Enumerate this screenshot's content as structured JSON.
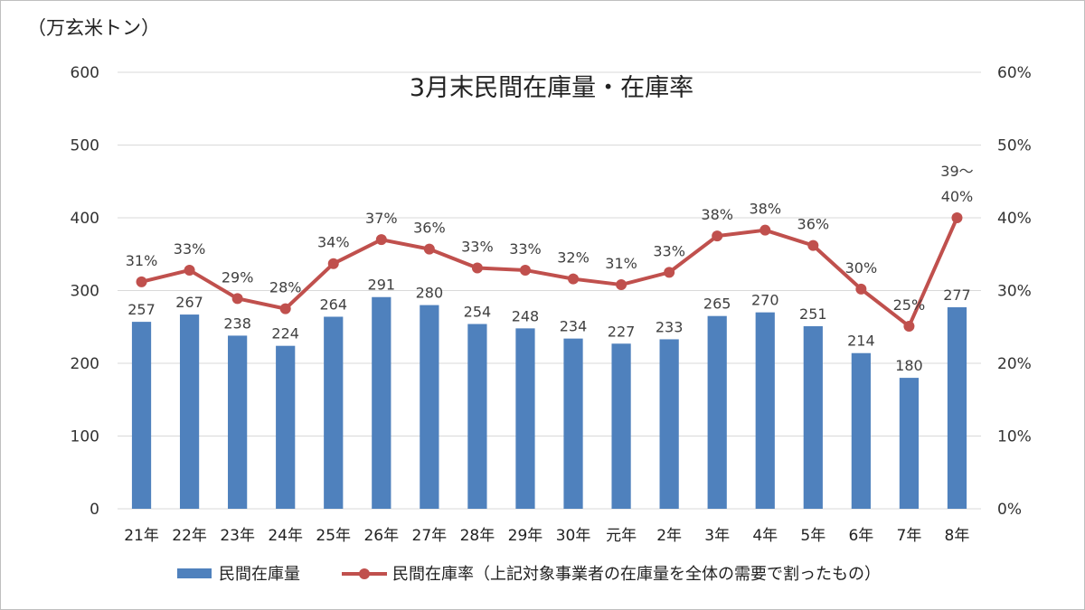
{
  "chart_data": {
    "type": "bar",
    "title": "3月末民間在庫量・在庫率",
    "unit_label": "（万玄米トン）",
    "categories": [
      "21年",
      "22年",
      "23年",
      "24年",
      "25年",
      "26年",
      "27年",
      "28年",
      "29年",
      "30年",
      "元年",
      "2年",
      "3年",
      "4年",
      "5年",
      "6年",
      "7年",
      "8年"
    ],
    "series": [
      {
        "name": "民間在庫量",
        "type": "bar",
        "axis": "left",
        "color": "#4f81bd",
        "values": [
          257,
          267,
          238,
          224,
          264,
          291,
          280,
          254,
          248,
          234,
          227,
          233,
          265,
          270,
          251,
          214,
          180,
          277
        ],
        "labels": [
          "257",
          "267",
          "238",
          "224",
          "264",
          "291",
          "280",
          "254",
          "248",
          "234",
          "227",
          "233",
          "265",
          "270",
          "251",
          "214",
          "180",
          "277"
        ]
      },
      {
        "name": "民間在庫率（上記対象事業者の在庫量を全体の需要で割ったもの）",
        "type": "line",
        "axis": "right",
        "color": "#c0504d",
        "values": [
          31.2,
          32.8,
          28.9,
          27.5,
          33.7,
          37.0,
          35.7,
          33.1,
          32.8,
          31.6,
          30.8,
          32.5,
          37.5,
          38.3,
          36.2,
          30.2,
          25.1,
          40.0
        ],
        "labels": [
          "31%",
          "33%",
          "29%",
          "28%",
          "34%",
          "37%",
          "36%",
          "33%",
          "33%",
          "32%",
          "31%",
          "33%",
          "38%",
          "38%",
          "36%",
          "30%",
          "25%",
          "40%"
        ]
      }
    ],
    "last_label_prefix": "39～",
    "y_left": {
      "min": 0,
      "max": 600,
      "ticks": [
        "0",
        "100",
        "200",
        "300",
        "400",
        "500",
        "600"
      ]
    },
    "y_right": {
      "min": 0,
      "max": 60,
      "ticks": [
        "0%",
        "10%",
        "20%",
        "30%",
        "40%",
        "50%",
        "60%"
      ]
    },
    "grid": true,
    "legend_position": "bottom"
  }
}
